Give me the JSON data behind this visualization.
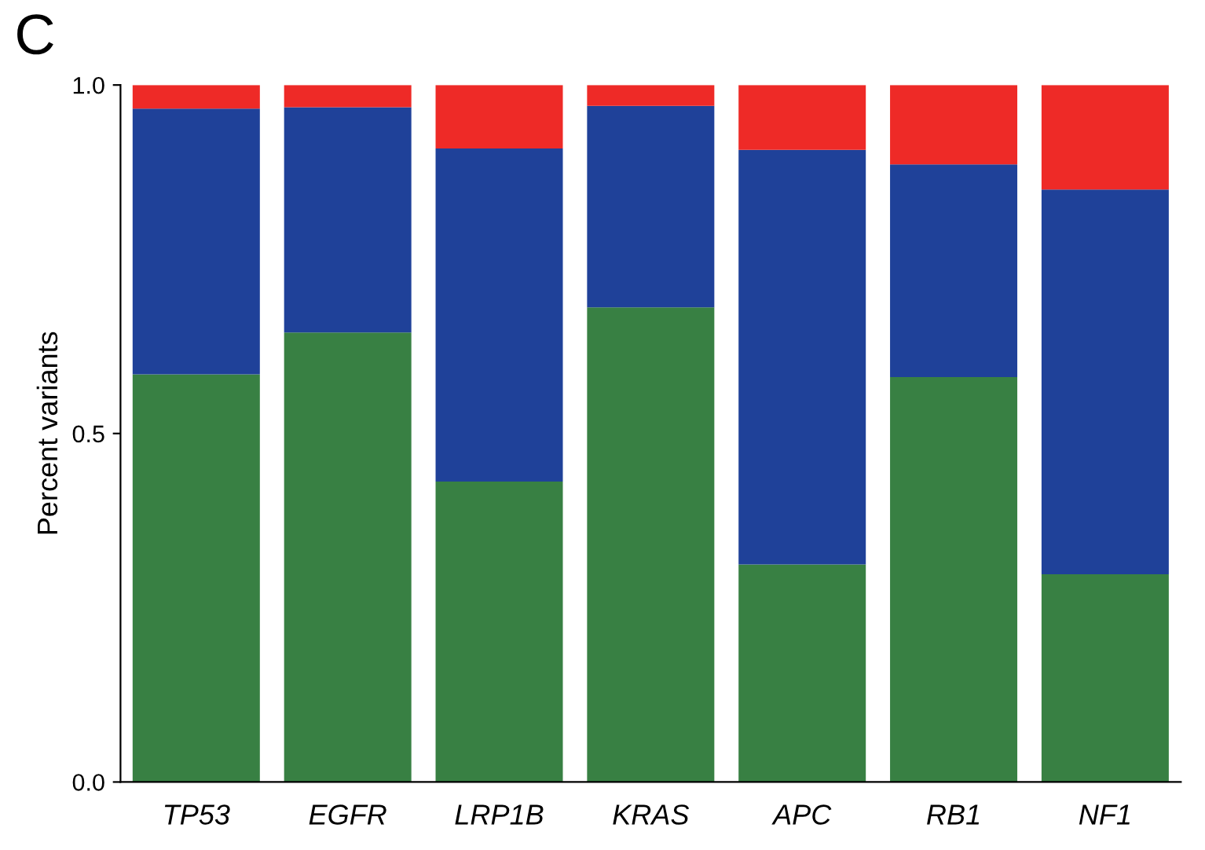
{
  "chart_data": {
    "type": "bar",
    "stacked": true,
    "ylabel": "Percent variants",
    "annotations": [
      "C"
    ],
    "categories": [
      "TP53",
      "EGFR",
      "LRP1B",
      "KRAS",
      "APC",
      "RB1",
      "NF1"
    ],
    "series": [
      {
        "color": "#388043",
        "values": [
          0.585,
          0.645,
          0.431,
          0.681,
          0.312,
          0.581,
          0.298
        ]
      },
      {
        "color": "#1f4199",
        "values": [
          0.381,
          0.323,
          0.478,
          0.289,
          0.595,
          0.305,
          0.552
        ]
      },
      {
        "color": "#ee2a27",
        "values": [
          0.034,
          0.032,
          0.091,
          0.03,
          0.093,
          0.114,
          0.15
        ]
      }
    ],
    "ylim": [
      0,
      1.0
    ],
    "yticks": [
      {
        "value": 0,
        "label": "0.0"
      },
      0.5,
      {
        "value": 1.0,
        "label": "1.0"
      }
    ],
    "grid": false
  }
}
